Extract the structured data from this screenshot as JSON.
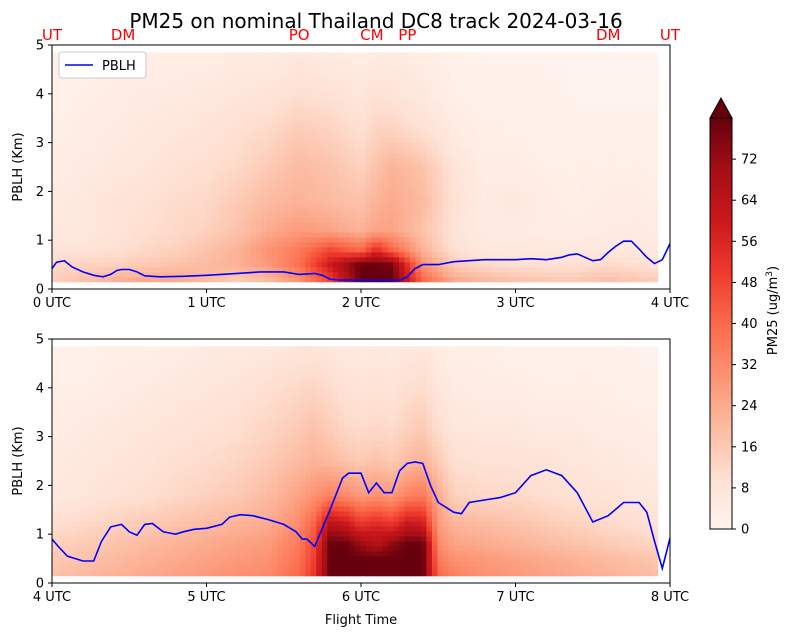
{
  "chart_data": {
    "type": "heatmap",
    "title": "PM25 on nominal Thailand DC8 track 2024-03-16",
    "station_labels": [
      {
        "label": "UT",
        "time": 0.0
      },
      {
        "label": "DM",
        "time": 0.46
      },
      {
        "label": "PO",
        "time": 1.6
      },
      {
        "label": "CM",
        "time": 2.07
      },
      {
        "label": "PP",
        "time": 2.3
      },
      {
        "label": "DM",
        "time": 3.6
      },
      {
        "label": "UT",
        "time": 4.0
      }
    ],
    "panels": [
      {
        "ylabel": "PBLH (Km)",
        "xlabel": "",
        "xlim": [
          0,
          4
        ],
        "ylim": [
          0,
          5
        ],
        "xticks": [
          {
            "value": 0,
            "label": "0 UTC"
          },
          {
            "value": 1,
            "label": "1 UTC"
          },
          {
            "value": 2,
            "label": "2 UTC"
          },
          {
            "value": 3,
            "label": "3 UTC"
          },
          {
            "value": 4,
            "label": "4 UTC"
          }
        ],
        "yticks": [
          "0",
          "1",
          "2",
          "3",
          "4",
          "5"
        ],
        "legend": {
          "label": "PBLH",
          "color": "#0000ff",
          "position": "upper-left"
        },
        "pblh": {
          "time": [
            0.0,
            0.03,
            0.08,
            0.13,
            0.2,
            0.27,
            0.33,
            0.38,
            0.42,
            0.45,
            0.5,
            0.55,
            0.6,
            0.7,
            0.85,
            1.0,
            1.2,
            1.35,
            1.5,
            1.6,
            1.7,
            1.75,
            1.8,
            1.9,
            2.0,
            2.1,
            2.2,
            2.25,
            2.3,
            2.35,
            2.4,
            2.5,
            2.6,
            2.7,
            2.8,
            2.9,
            3.0,
            3.1,
            3.2,
            3.3,
            3.35,
            3.4,
            3.45,
            3.5,
            3.55,
            3.6,
            3.65,
            3.7,
            3.75,
            3.8,
            3.85,
            3.9,
            3.95,
            4.0
          ],
          "value": [
            0.42,
            0.55,
            0.58,
            0.45,
            0.35,
            0.28,
            0.25,
            0.3,
            0.38,
            0.4,
            0.4,
            0.35,
            0.27,
            0.25,
            0.26,
            0.28,
            0.32,
            0.35,
            0.35,
            0.3,
            0.32,
            0.28,
            0.2,
            0.18,
            0.18,
            0.18,
            0.18,
            0.18,
            0.25,
            0.42,
            0.5,
            0.5,
            0.56,
            0.58,
            0.6,
            0.6,
            0.6,
            0.62,
            0.6,
            0.65,
            0.7,
            0.72,
            0.65,
            0.58,
            0.6,
            0.75,
            0.88,
            0.98,
            0.98,
            0.82,
            0.65,
            0.52,
            0.6,
            0.93
          ]
        },
        "pm25_field": {
          "time": [
            0,
            0.2,
            0.4,
            0.6,
            0.8,
            1.0,
            1.2,
            1.4,
            1.6,
            1.8,
            2.0,
            2.1,
            2.2,
            2.4,
            2.6,
            2.8,
            3.0,
            3.2,
            3.4,
            3.6,
            3.8,
            4.0
          ],
          "height_km": [
            0.2,
            0.5,
            0.8,
            1.2,
            1.8,
            2.5,
            3.2,
            4.0,
            4.8
          ],
          "values": [
            [
              14,
              18,
              22,
              24,
              24,
              20,
              16,
              20,
              30,
              48,
              80,
              80,
              80,
              40,
              24,
              20,
              18,
              16,
              16,
              18,
              16,
              14
            ],
            [
              12,
              14,
              14,
              16,
              18,
              20,
              22,
              28,
              38,
              60,
              80,
              80,
              78,
              30,
              16,
              12,
              10,
              10,
              10,
              12,
              10,
              8
            ],
            [
              8,
              8,
              10,
              12,
              14,
              18,
              22,
              30,
              36,
              48,
              40,
              55,
              42,
              22,
              10,
              6,
              6,
              6,
              6,
              6,
              6,
              6
            ],
            [
              6,
              6,
              8,
              10,
              12,
              14,
              18,
              24,
              28,
              26,
              22,
              26,
              26,
              18,
              8,
              5,
              5,
              4,
              4,
              5,
              5,
              4
            ],
            [
              5,
              6,
              8,
              9,
              11,
              12,
              16,
              20,
              22,
              20,
              18,
              22,
              24,
              20,
              9,
              5,
              6,
              4,
              3,
              4,
              4,
              3
            ],
            [
              4,
              5,
              6,
              7,
              9,
              10,
              12,
              16,
              20,
              18,
              14,
              18,
              22,
              18,
              8,
              4,
              4,
              3,
              3,
              3,
              3,
              2
            ],
            [
              3,
              4,
              5,
              6,
              7,
              8,
              10,
              12,
              16,
              14,
              10,
              14,
              14,
              10,
              5,
              3,
              3,
              2,
              2,
              2,
              2,
              2
            ],
            [
              2,
              3,
              4,
              5,
              5,
              6,
              7,
              8,
              10,
              9,
              7,
              9,
              8,
              6,
              3,
              2,
              2,
              2,
              1,
              1,
              1,
              1
            ],
            [
              2,
              2,
              3,
              3,
              4,
              4,
              5,
              5,
              6,
              5,
              4,
              5,
              5,
              4,
              2,
              1,
              1,
              1,
              1,
              1,
              1,
              1
            ]
          ]
        }
      },
      {
        "ylabel": "PBLH (Km)",
        "xlabel": "Flight Time",
        "xlim": [
          4,
          8
        ],
        "ylim": [
          0,
          5
        ],
        "xticks": [
          {
            "value": 4,
            "label": "4 UTC"
          },
          {
            "value": 5,
            "label": "5 UTC"
          },
          {
            "value": 6,
            "label": "6 UTC"
          },
          {
            "value": 7,
            "label": "7 UTC"
          },
          {
            "value": 8,
            "label": "8 UTC"
          }
        ],
        "yticks": [
          "0",
          "1",
          "2",
          "3",
          "4",
          "5"
        ],
        "pblh": {
          "time": [
            4.0,
            4.04,
            4.1,
            4.2,
            4.27,
            4.32,
            4.38,
            4.45,
            4.5,
            4.55,
            4.6,
            4.65,
            4.72,
            4.8,
            4.85,
            4.92,
            5.0,
            5.1,
            5.15,
            5.22,
            5.3,
            5.4,
            5.5,
            5.58,
            5.62,
            5.65,
            5.7,
            5.8,
            5.88,
            5.92,
            6.0,
            6.05,
            6.1,
            6.15,
            6.2,
            6.25,
            6.3,
            6.35,
            6.4,
            6.45,
            6.5,
            6.6,
            6.65,
            6.7,
            6.8,
            6.9,
            7.0,
            7.1,
            7.2,
            7.3,
            7.4,
            7.5,
            7.6,
            7.7,
            7.8,
            7.85,
            7.9,
            7.95,
            8.0
          ],
          "value": [
            0.9,
            0.75,
            0.55,
            0.45,
            0.45,
            0.85,
            1.15,
            1.2,
            1.05,
            0.98,
            1.2,
            1.22,
            1.05,
            1.0,
            1.05,
            1.1,
            1.12,
            1.2,
            1.35,
            1.4,
            1.38,
            1.3,
            1.2,
            1.05,
            0.9,
            0.9,
            0.75,
            1.5,
            2.15,
            2.25,
            2.25,
            1.85,
            2.05,
            1.85,
            1.85,
            2.3,
            2.45,
            2.48,
            2.45,
            2.0,
            1.65,
            1.45,
            1.42,
            1.65,
            1.7,
            1.75,
            1.85,
            2.2,
            2.32,
            2.2,
            1.85,
            1.25,
            1.38,
            1.65,
            1.65,
            1.45,
            0.85,
            0.3,
            0.92
          ]
        },
        "pm25_field": {
          "time": [
            4.0,
            4.2,
            4.4,
            4.6,
            4.8,
            5.0,
            5.2,
            5.4,
            5.6,
            5.7,
            5.8,
            5.9,
            6.0,
            6.1,
            6.2,
            6.3,
            6.4,
            6.5,
            6.6,
            6.8,
            7.0,
            7.2,
            7.4,
            7.6,
            7.8,
            8.0
          ],
          "height_km": [
            0.2,
            0.5,
            0.8,
            1.2,
            1.8,
            2.5,
            3.2,
            4.0,
            4.8
          ],
          "values": [
            [
              18,
              20,
              22,
              24,
              26,
              28,
              30,
              32,
              40,
              52,
              80,
              80,
              80,
              80,
              80,
              80,
              80,
              40,
              34,
              30,
              28,
              26,
              24,
              22,
              20,
              18
            ],
            [
              16,
              18,
              20,
              22,
              24,
              26,
              28,
              30,
              38,
              50,
              80,
              80,
              80,
              80,
              80,
              80,
              80,
              36,
              30,
              28,
              26,
              24,
              22,
              20,
              18,
              16
            ],
            [
              14,
              16,
              18,
              20,
              22,
              24,
              26,
              28,
              36,
              48,
              80,
              80,
              72,
              66,
              74,
              80,
              80,
              32,
              26,
              24,
              22,
              20,
              18,
              16,
              14,
              12
            ],
            [
              10,
              12,
              14,
              16,
              18,
              20,
              22,
              24,
              32,
              42,
              66,
              62,
              52,
              56,
              52,
              62,
              60,
              28,
              22,
              20,
              18,
              16,
              14,
              12,
              10,
              8
            ],
            [
              6,
              7,
              9,
              10,
              12,
              14,
              16,
              20,
              26,
              30,
              34,
              32,
              28,
              30,
              28,
              34,
              36,
              24,
              14,
              12,
              12,
              10,
              9,
              8,
              7,
              6
            ],
            [
              5,
              6,
              7,
              8,
              10,
              11,
              13,
              16,
              20,
              22,
              20,
              18,
              16,
              18,
              16,
              20,
              22,
              16,
              10,
              9,
              9,
              8,
              7,
              6,
              5,
              4
            ],
            [
              4,
              5,
              6,
              7,
              8,
              9,
              10,
              13,
              16,
              18,
              15,
              12,
              11,
              12,
              11,
              14,
              16,
              10,
              7,
              6,
              6,
              5,
              5,
              4,
              4,
              3
            ],
            [
              3,
              3,
              4,
              5,
              6,
              7,
              8,
              10,
              12,
              13,
              11,
              9,
              8,
              9,
              8,
              10,
              11,
              7,
              5,
              4,
              4,
              3,
              3,
              3,
              2,
              2
            ],
            [
              2,
              2,
              3,
              3,
              4,
              5,
              5,
              6,
              8,
              8,
              7,
              6,
              5,
              6,
              5,
              6,
              7,
              4,
              3,
              3,
              2,
              2,
              2,
              2,
              1,
              1
            ]
          ]
        }
      }
    ],
    "colorbar": {
      "label": "PM25 (ug/m3)",
      "label_main": "PM25 (ug/m",
      "label_sup": "3",
      "label_close": ")",
      "min": 0,
      "max": 80,
      "extend": "max",
      "ticks": [
        "0",
        "8",
        "16",
        "24",
        "32",
        "40",
        "48",
        "56",
        "64",
        "72"
      ],
      "colormap": "Reds"
    }
  }
}
